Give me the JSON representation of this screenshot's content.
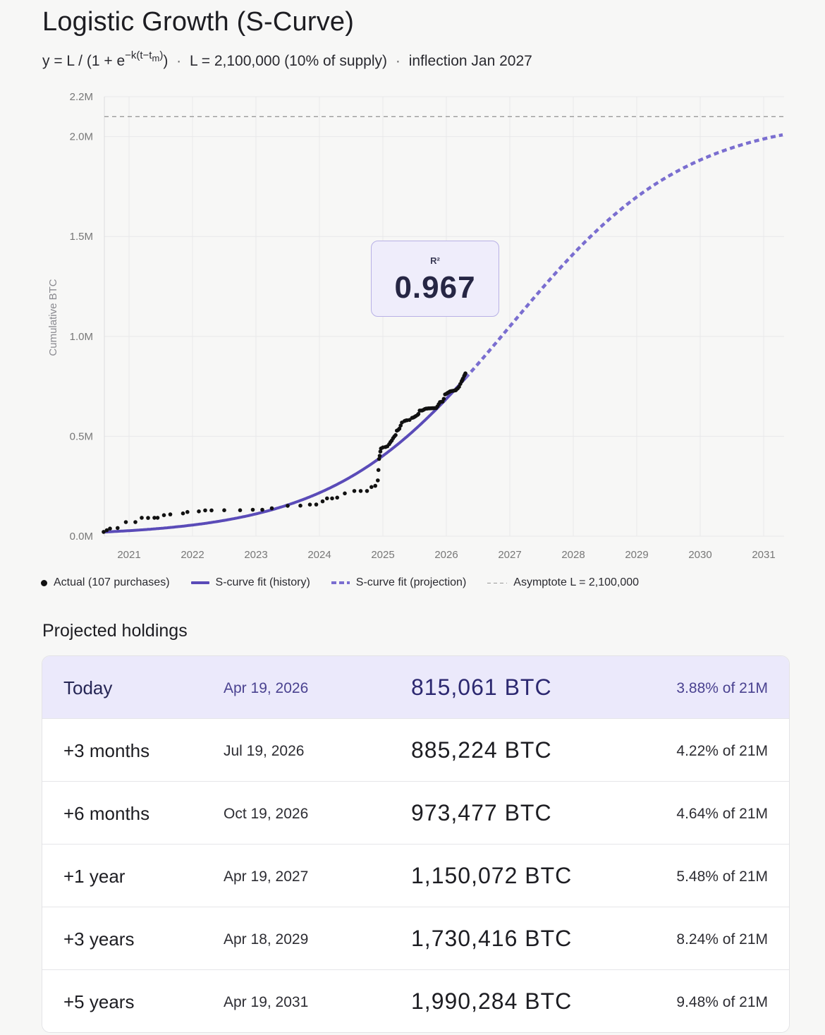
{
  "header": {
    "title": "Logistic Growth (S-Curve)",
    "formula_prefix": "y = L / (1 + e",
    "formula_exponent": "−k(t−t",
    "formula_sub": "m",
    "formula_exp_close": ")",
    "formula_suffix": ")",
    "param_l": "L = 2,100,000 (10% of supply)",
    "param_inflection": "inflection Jan 2027"
  },
  "r2": {
    "label": "R²",
    "value": "0.967"
  },
  "legend": {
    "actual": "Actual (107 purchases)",
    "fit_history": "S-curve fit (history)",
    "fit_projection": "S-curve fit (projection)",
    "asymptote": "Asymptote L = 2,100,000"
  },
  "chart_data": {
    "type": "line",
    "ylabel": "Cumulative BTC",
    "xlabel": "",
    "x_ticks": [
      "2021",
      "2022",
      "2023",
      "2024",
      "2025",
      "2026",
      "2027",
      "2028",
      "2029",
      "2030",
      "2031"
    ],
    "y_ticks": [
      "0.0M",
      "0.5M",
      "1.0M",
      "1.5M",
      "2.0M",
      "2.2M"
    ],
    "xlim": [
      2020.6,
      2031.3
    ],
    "ylim": [
      0,
      2200000
    ],
    "grid": true,
    "asymptote": 2100000,
    "logistic": {
      "L": 2100000,
      "k": 0.72,
      "tm": 2027.0
    },
    "history_range": [
      2020.6,
      2026.3
    ],
    "projection_range": [
      2026.3,
      2031.3
    ],
    "actual_points": [
      [
        2020.6,
        21454
      ],
      [
        2020.7,
        38250
      ],
      [
        2020.82,
        40824
      ],
      [
        2020.95,
        70470
      ],
      [
        2021.1,
        70784
      ],
      [
        2021.2,
        92079
      ],
      [
        2021.3,
        91326
      ],
      [
        2021.4,
        92079
      ],
      [
        2021.45,
        92079
      ],
      [
        2021.55,
        105085
      ],
      [
        2021.65,
        108992
      ],
      [
        2021.85,
        114042
      ],
      [
        2021.92,
        121044
      ],
      [
        2022.1,
        124391
      ],
      [
        2022.2,
        129218
      ],
      [
        2022.3,
        129218
      ],
      [
        2022.5,
        130000
      ],
      [
        2022.75,
        130000
      ],
      [
        2022.95,
        132500
      ],
      [
        2023.1,
        132500
      ],
      [
        2023.25,
        140000
      ],
      [
        2023.5,
        152333
      ],
      [
        2023.7,
        152800
      ],
      [
        2023.85,
        158245
      ],
      [
        2023.95,
        158400
      ],
      [
        2024.05,
        174530
      ],
      [
        2024.12,
        189150
      ],
      [
        2024.2,
        189150
      ],
      [
        2024.28,
        193000
      ],
      [
        2024.4,
        214246
      ],
      [
        2024.55,
        226331
      ],
      [
        2024.65,
        226500
      ],
      [
        2024.75,
        226500
      ],
      [
        2024.82,
        246000
      ],
      [
        2024.88,
        252220
      ],
      [
        2024.92,
        279420
      ],
      [
        2024.93,
        331200
      ],
      [
        2024.94,
        386700
      ],
      [
        2024.95,
        402100
      ],
      [
        2024.96,
        423650
      ],
      [
        2024.97,
        439000
      ],
      [
        2025.0,
        444262
      ],
      [
        2025.04,
        446400
      ],
      [
        2025.07,
        450000
      ],
      [
        2025.1,
        461000
      ],
      [
        2025.12,
        471107
      ],
      [
        2025.14,
        478740
      ],
      [
        2025.18,
        499096
      ],
      [
        2025.2,
        506137
      ],
      [
        2025.22,
        528185
      ],
      [
        2025.24,
        531644
      ],
      [
        2025.26,
        538200
      ],
      [
        2025.28,
        553555
      ],
      [
        2025.3,
        568840
      ],
      [
        2025.34,
        576230
      ],
      [
        2025.38,
        580250
      ],
      [
        2025.42,
        582000
      ],
      [
        2025.46,
        592345
      ],
      [
        2025.5,
        597325
      ],
      [
        2025.52,
        601550
      ],
      [
        2025.55,
        607770
      ],
      [
        2025.58,
        628791
      ],
      [
        2025.6,
        628946
      ],
      [
        2025.62,
        629376
      ],
      [
        2025.64,
        632457
      ],
      [
        2025.66,
        636505
      ],
      [
        2025.68,
        638460
      ],
      [
        2025.7,
        638985
      ],
      [
        2025.72,
        639835
      ],
      [
        2025.74,
        640031
      ],
      [
        2025.76,
        640250
      ],
      [
        2025.78,
        640418
      ],
      [
        2025.8,
        640808
      ],
      [
        2025.82,
        641205
      ],
      [
        2025.84,
        641692
      ],
      [
        2025.86,
        649870
      ],
      [
        2025.88,
        660624
      ],
      [
        2025.9,
        671268
      ],
      [
        2025.92,
        672497
      ],
      [
        2025.94,
        673783
      ],
      [
        2025.96,
        687410
      ],
      [
        2025.98,
        709715
      ],
      [
        2026.0,
        712647
      ],
      [
        2026.02,
        717131
      ],
      [
        2026.04,
        720737
      ],
      [
        2026.06,
        724805
      ],
      [
        2026.08,
        726213
      ],
      [
        2026.1,
        727300
      ],
      [
        2026.12,
        728400
      ],
      [
        2026.14,
        729800
      ],
      [
        2026.16,
        735100
      ],
      [
        2026.18,
        740200
      ],
      [
        2026.2,
        748000
      ],
      [
        2026.22,
        762100
      ],
      [
        2026.24,
        774800
      ],
      [
        2026.26,
        788600
      ],
      [
        2026.28,
        801200
      ],
      [
        2026.3,
        815061
      ],
      [
        2025.16,
        490000
      ],
      [
        2025.36,
        579000
      ],
      [
        2025.48,
        594000
      ],
      [
        2025.56,
        612000
      ],
      [
        2026.05,
        722000
      ],
      [
        2026.15,
        731000
      ],
      [
        2026.25,
        780000
      ],
      [
        2026.29,
        808000
      ],
      [
        2020.65,
        30000
      ]
    ]
  },
  "projected": {
    "section_title": "Projected holdings",
    "rows": [
      {
        "label": "Today",
        "date": "Apr 19, 2026",
        "btc": "815,061 BTC",
        "pct": "3.88% of 21M"
      },
      {
        "label": "+3 months",
        "date": "Jul 19, 2026",
        "btc": "885,224 BTC",
        "pct": "4.22% of 21M"
      },
      {
        "label": "+6 months",
        "date": "Oct 19, 2026",
        "btc": "973,477 BTC",
        "pct": "4.64% of 21M"
      },
      {
        "label": "+1 year",
        "date": "Apr 19, 2027",
        "btc": "1,150,072 BTC",
        "pct": "5.48% of 21M"
      },
      {
        "label": "+3 years",
        "date": "Apr 18, 2029",
        "btc": "1,730,416 BTC",
        "pct": "8.24% of 21M"
      },
      {
        "label": "+5 years",
        "date": "Apr 19, 2031",
        "btc": "1,990,284 BTC",
        "pct": "9.48% of 21M"
      }
    ]
  },
  "colors": {
    "fit": "#5a4bb8",
    "projection": "#7a6ed0",
    "actual": "#111111",
    "asymptote": "#9a9a9a",
    "grid": "#e8e8ea",
    "highlight_row": "#ebe9fb"
  }
}
